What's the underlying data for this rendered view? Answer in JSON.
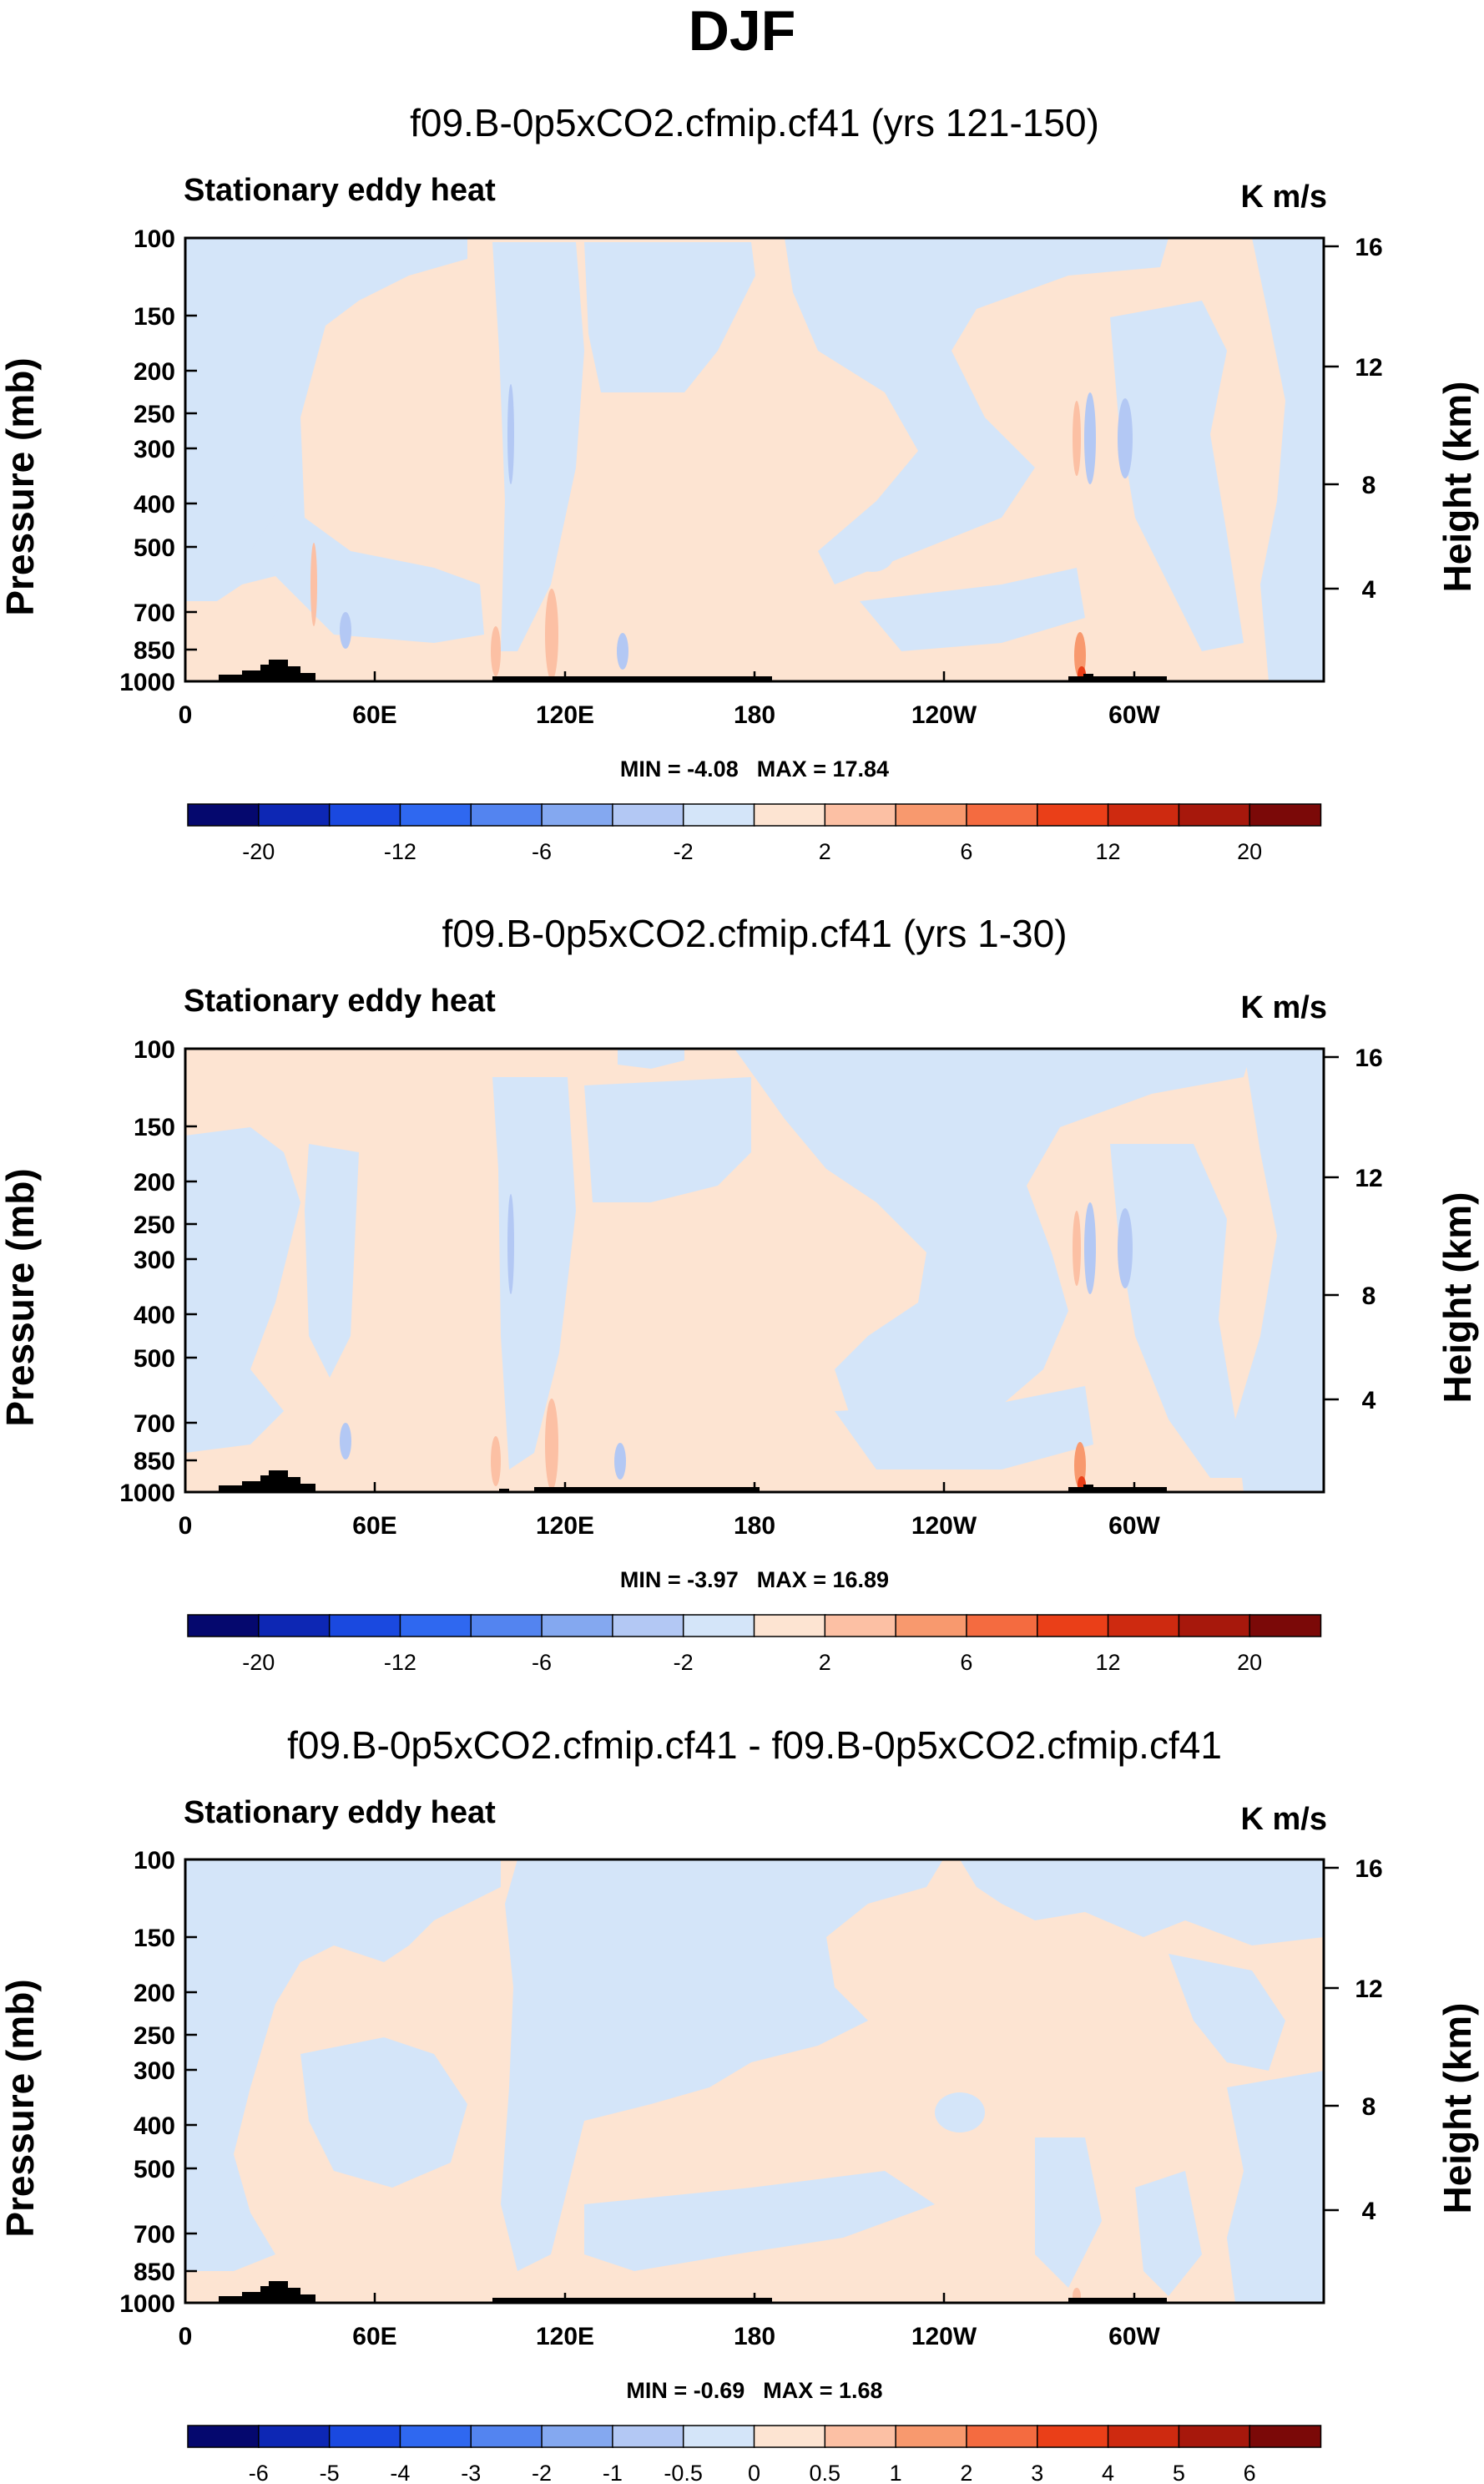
{
  "figure": {
    "title": "DJF",
    "lon_labels": [
      "0",
      "60E",
      "120E",
      "180",
      "120W",
      "60W"
    ],
    "pressure_ticks": [
      100,
      150,
      200,
      250,
      300,
      400,
      500,
      700,
      850,
      1000
    ],
    "height_ticks": [
      16,
      12,
      8,
      4
    ]
  },
  "colors": {
    "fill_positive": "#fde4d2",
    "fill_negative": "#d4e5f9",
    "terrain": "#000000",
    "cb_main": [
      "#05086e",
      "#0d27b4",
      "#1a49e0",
      "#2f68f0",
      "#5384f0",
      "#84a8f0",
      "#b3c8f4",
      "#d4e5f9",
      "#fde4d2",
      "#fcc0a4",
      "#f8996e",
      "#f46b40",
      "#ea3f18",
      "#ce2a10",
      "#a7180c",
      "#7b0908"
    ],
    "cb_diff": [
      "#05086e",
      "#0d27b4",
      "#1a49e0",
      "#2f68f0",
      "#5384f0",
      "#84a8f0",
      "#b3c8f4",
      "#d4e5f9",
      "#fde4d2",
      "#fcc0a4",
      "#f8996e",
      "#f46b40",
      "#ea3f18",
      "#ce2a10",
      "#a7180c",
      "#7b0908"
    ]
  },
  "chart_data": [
    {
      "type": "contour",
      "title": "f09.B-0p5xCO2.cfmip.cf41 (yrs 121-150)",
      "left_string": "Stationary eddy heat",
      "units": "K m/s",
      "xlabel": "",
      "ylabel": "Pressure (mb)",
      "ylabel_right": "Height (km)",
      "min_label": "MIN = ",
      "min": "-4.08",
      "max_label": "MAX = ",
      "max": "17.84",
      "colorbar_labels": [
        "-20",
        "-12",
        "-6",
        "-2",
        "2",
        "6",
        "12",
        "20"
      ]
    },
    {
      "type": "contour",
      "title": "f09.B-0p5xCO2.cfmip.cf41 (yrs 1-30)",
      "left_string": "Stationary eddy heat",
      "units": "K m/s",
      "xlabel": "",
      "ylabel": "Pressure (mb)",
      "ylabel_right": "Height (km)",
      "min_label": "MIN = ",
      "min": "-3.97",
      "max_label": "MAX = ",
      "max": "16.89",
      "colorbar_labels": [
        "-20",
        "-12",
        "-6",
        "-2",
        "2",
        "6",
        "12",
        "20"
      ]
    },
    {
      "type": "contour",
      "title": "f09.B-0p5xCO2.cfmip.cf41 - f09.B-0p5xCO2.cfmip.cf41",
      "left_string": "Stationary eddy heat",
      "units": "K m/s",
      "xlabel": "",
      "ylabel": "Pressure (mb)",
      "ylabel_right": "Height (km)",
      "min_label": "MIN = ",
      "min": "-0.69",
      "max_label": "MAX = ",
      "max": "1.68",
      "colorbar_labels": [
        "-6",
        "-5",
        "-4",
        "-3",
        "-2",
        "-1",
        "-0.5",
        "0",
        "0.5",
        "1",
        "2",
        "3",
        "4",
        "5",
        "6"
      ]
    }
  ]
}
